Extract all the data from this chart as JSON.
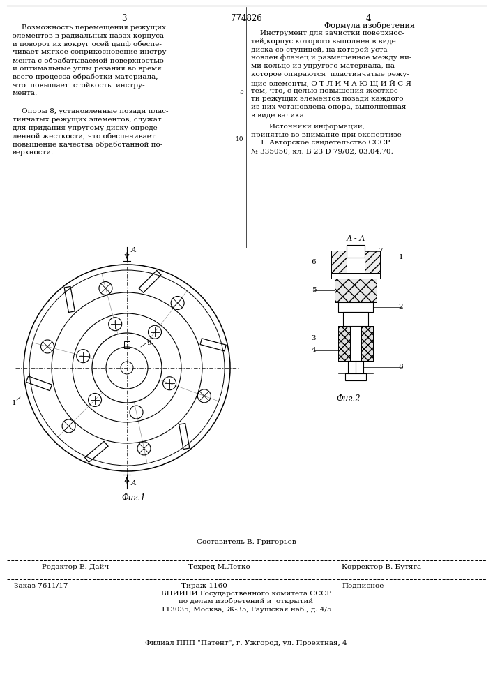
{
  "bg_color": "#ffffff",
  "page_color": "#ffffff",
  "title_center": "774826",
  "page_num_left": "3",
  "page_num_right": "4",
  "left_col_text": [
    "    Возможность перемещения режущих",
    "элементов в радиальных пазах корпуса",
    "и поворот их вокруг осей цапф обеспе-",
    "чивает мягкое соприкосновение инстру-",
    "мента с обрабатываемой поверхностью",
    "и оптимальные углы резания во время",
    "всего процесса обработки материала,",
    "что  повышает  стойкость  инстру-",
    "мента."
  ],
  "left_col_text2": [
    "    Опоры 8, установленные позади плас-",
    "тинчатых режущих элементов, служат",
    "для придания упругому диску опреде-",
    "ленной жесткости, что обеспечивает",
    "повышение качества обработанной по-",
    "верхности."
  ],
  "line_num_5": "5",
  "line_num_10": "10",
  "right_col_heading": "Формула изобретения",
  "right_col_text": [
    "    Инструмент для зачистки поверхнос-",
    "тей,корпус которого выполнен в виде",
    "диска со ступицей, на которой уста-",
    "новлен фланец и размещенное между ни-",
    "ми кольцо из упругого материала, на",
    "которое опираются  пластинчатые режу-",
    "щие элементы, О Т Л И Ч А Ю Щ И Й С Я",
    "тем, что, с целью повышения жесткос-",
    "ти режущих элементов позади каждого",
    "из них установлена опора, выполненная",
    "в виде валика."
  ],
  "right_col_text2": [
    "        Источники информации,",
    "принятые во внимание при экспертизе",
    "    1. Авторское свидетельство СССР",
    "№ 335050, кл. В 23 D 79/02, 03.04.70."
  ],
  "fig1_caption": "Фиг.1",
  "fig2_caption": "Фиг.2",
  "fig_label_AA": "А - А",
  "bottom_line1_center": "Составитель В. Григорьев",
  "bottom_line2_left": "Редактор Е. Дайч",
  "bottom_line2_mid": "Техред М.Летко",
  "bottom_line2_right": "Корректор В. Бутяга",
  "bottom_line3_left": "Заказ 7611/17",
  "bottom_line3_mid": "Тираж 1160",
  "bottom_line3_right": "Подписное",
  "bottom_line4": "ВНИИПИ Государственного комитета СССР",
  "bottom_line5": "по делам изобретений и  открытий",
  "bottom_line6": "113035, Москва, Ж-35, Раушская наб., д. 4/5",
  "bottom_line7": "Филиал ППП \"Патент\", г. Ужгород, ул. Проектная, 4",
  "line_color": "#000000",
  "text_color": "#000000",
  "font_size_main": 7.5,
  "font_size_header": 8.5,
  "font_size_small": 6.5
}
